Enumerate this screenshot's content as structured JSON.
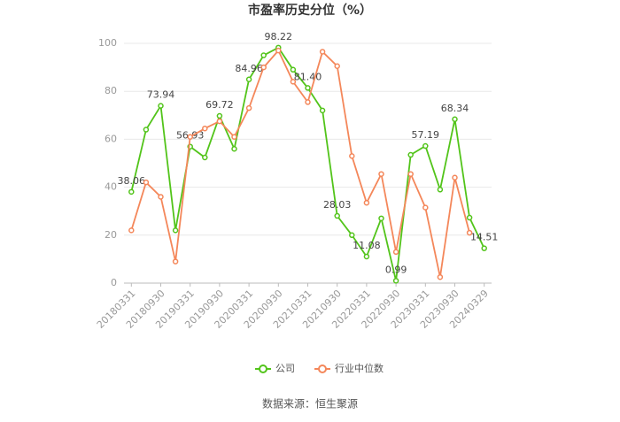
{
  "chart_data": {
    "type": "line",
    "title": "市盈率历史分位（%）",
    "categories": [
      "20180331",
      null,
      "20180930",
      null,
      "20190331",
      null,
      "20190930",
      null,
      "20200331",
      null,
      "20200930",
      null,
      "20210331",
      null,
      "20210930",
      null,
      "20220331",
      null,
      "20220930",
      null,
      "20230331",
      null,
      "20230930",
      null,
      "20240329"
    ],
    "series": [
      {
        "name": "公司",
        "color": "#52c41a",
        "values": [
          38.06,
          64,
          73.94,
          22,
          56.93,
          52.4,
          69.72,
          56,
          84.96,
          95,
          98.22,
          89,
          81.4,
          72,
          28.03,
          20,
          11.08,
          27,
          0.99,
          53.5,
          57.19,
          39,
          68.34,
          27.3,
          14.51
        ],
        "value_labels": [
          "38.06",
          null,
          "73.94",
          null,
          "56.93",
          null,
          "69.72",
          null,
          "84.96",
          null,
          "98.22",
          null,
          "81.40",
          null,
          "28.03",
          null,
          "11.08",
          null,
          "0.99",
          null,
          "57.19",
          null,
          "68.34",
          null,
          "14.51"
        ]
      },
      {
        "name": "行业中位数",
        "color": "#f4875a",
        "values": [
          22,
          42,
          36,
          9,
          61,
          64.5,
          67.5,
          61,
          73,
          90,
          97,
          84,
          75.5,
          96.5,
          90.5,
          53,
          33.5,
          45.5,
          13,
          45.5,
          31.5,
          2.5,
          44,
          21,
          null
        ]
      }
    ],
    "ylim": [
      0,
      100
    ],
    "yticks": [
      0,
      20,
      40,
      60,
      80,
      100
    ],
    "grid": true,
    "source": "数据来源：恒生聚源"
  }
}
